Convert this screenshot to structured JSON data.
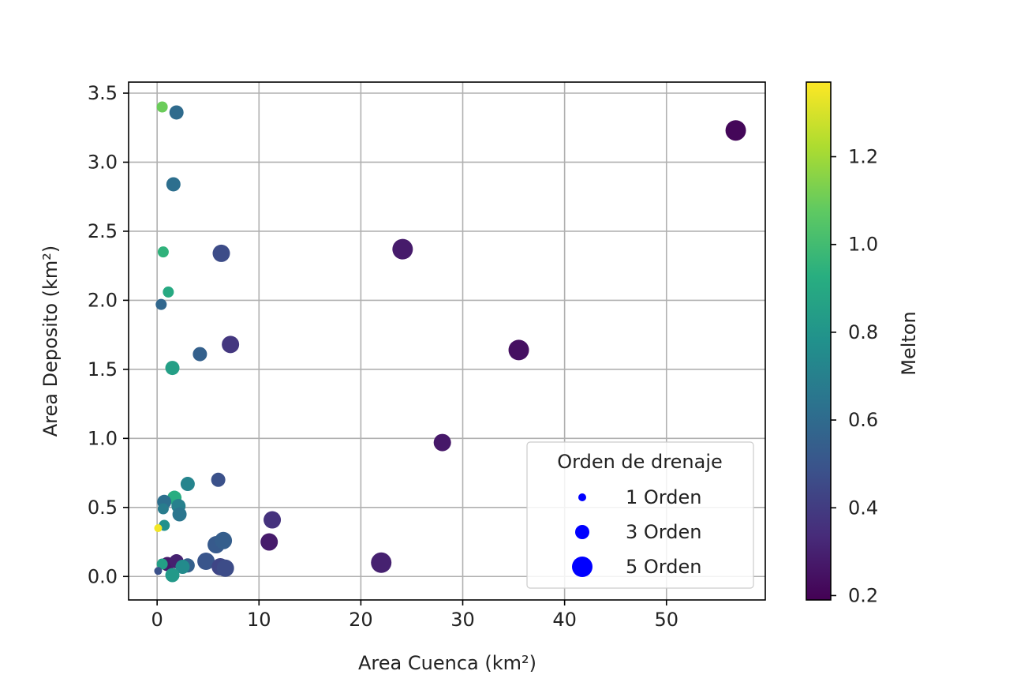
{
  "chart_data": {
    "type": "scatter",
    "xlabel": "Area Cuenca (km²)",
    "ylabel": "Area Deposito (km²)",
    "xlim": [
      -2.8,
      59.7
    ],
    "ylim": [
      -0.17,
      3.58
    ],
    "xticks": [
      "0",
      "10",
      "20",
      "30",
      "40",
      "50"
    ],
    "yticks": [
      "0.0",
      "0.5",
      "1.0",
      "1.5",
      "2.0",
      "2.5",
      "3.0",
      "3.5"
    ],
    "grid": true,
    "colormap": "viridis",
    "colorbar": {
      "label": "Melton",
      "range": [
        0.19,
        1.37
      ],
      "ticks": [
        "0.2",
        "0.4",
        "0.6",
        "0.8",
        "1.0",
        "1.2"
      ]
    },
    "legend": {
      "title": "Orden de drenaje",
      "placement": "lower right",
      "entries": [
        {
          "label": "1 Orden",
          "order": 1
        },
        {
          "label": "3 Orden",
          "order": 3
        },
        {
          "label": "5 Orden",
          "order": 5
        }
      ]
    },
    "points": [
      {
        "x": 56.8,
        "y": 3.23,
        "melton": 0.21,
        "order": 5
      },
      {
        "x": 24.1,
        "y": 2.37,
        "melton": 0.28,
        "order": 5
      },
      {
        "x": 35.5,
        "y": 1.64,
        "melton": 0.24,
        "order": 5
      },
      {
        "x": 28.0,
        "y": 0.97,
        "melton": 0.27,
        "order": 4
      },
      {
        "x": 22.0,
        "y": 0.1,
        "melton": 0.3,
        "order": 5
      },
      {
        "x": 0.5,
        "y": 3.4,
        "melton": 1.1,
        "order": 2
      },
      {
        "x": 1.9,
        "y": 3.36,
        "melton": 0.6,
        "order": 3
      },
      {
        "x": 1.6,
        "y": 2.84,
        "melton": 0.62,
        "order": 3
      },
      {
        "x": 0.6,
        "y": 2.35,
        "melton": 0.95,
        "order": 2
      },
      {
        "x": 6.3,
        "y": 2.34,
        "melton": 0.46,
        "order": 4
      },
      {
        "x": 1.1,
        "y": 2.06,
        "melton": 0.9,
        "order": 2
      },
      {
        "x": 0.4,
        "y": 1.97,
        "melton": 0.58,
        "order": 2
      },
      {
        "x": 7.2,
        "y": 1.68,
        "melton": 0.38,
        "order": 4
      },
      {
        "x": 4.2,
        "y": 1.61,
        "melton": 0.55,
        "order": 3
      },
      {
        "x": 1.5,
        "y": 1.51,
        "melton": 0.85,
        "order": 3
      },
      {
        "x": 3.0,
        "y": 0.67,
        "melton": 0.72,
        "order": 3
      },
      {
        "x": 6.0,
        "y": 0.7,
        "melton": 0.48,
        "order": 3
      },
      {
        "x": 1.7,
        "y": 0.57,
        "melton": 0.92,
        "order": 3
      },
      {
        "x": 0.7,
        "y": 0.54,
        "melton": 0.62,
        "order": 3
      },
      {
        "x": 0.6,
        "y": 0.49,
        "melton": 0.68,
        "order": 2
      },
      {
        "x": 2.1,
        "y": 0.51,
        "melton": 0.7,
        "order": 3
      },
      {
        "x": 2.2,
        "y": 0.45,
        "melton": 0.65,
        "order": 3
      },
      {
        "x": 0.7,
        "y": 0.37,
        "melton": 0.78,
        "order": 2
      },
      {
        "x": 0.1,
        "y": 0.35,
        "melton": 1.35,
        "order": 1
      },
      {
        "x": 11.3,
        "y": 0.41,
        "melton": 0.36,
        "order": 4
      },
      {
        "x": 11.0,
        "y": 0.25,
        "melton": 0.28,
        "order": 4
      },
      {
        "x": 5.8,
        "y": 0.23,
        "melton": 0.52,
        "order": 4
      },
      {
        "x": 6.5,
        "y": 0.26,
        "melton": 0.54,
        "order": 4
      },
      {
        "x": 4.8,
        "y": 0.11,
        "melton": 0.5,
        "order": 4
      },
      {
        "x": 3.0,
        "y": 0.08,
        "melton": 0.55,
        "order": 3
      },
      {
        "x": 6.2,
        "y": 0.07,
        "melton": 0.44,
        "order": 4
      },
      {
        "x": 6.7,
        "y": 0.06,
        "melton": 0.46,
        "order": 4
      },
      {
        "x": 1.0,
        "y": 0.09,
        "melton": 0.28,
        "order": 3
      },
      {
        "x": 1.9,
        "y": 0.11,
        "melton": 0.3,
        "order": 3
      },
      {
        "x": 2.5,
        "y": 0.07,
        "melton": 0.75,
        "order": 3
      },
      {
        "x": 1.5,
        "y": 0.01,
        "melton": 0.82,
        "order": 3
      },
      {
        "x": 0.5,
        "y": 0.09,
        "melton": 0.85,
        "order": 2
      },
      {
        "x": 0.1,
        "y": 0.04,
        "melton": 0.48,
        "order": 1
      }
    ]
  }
}
